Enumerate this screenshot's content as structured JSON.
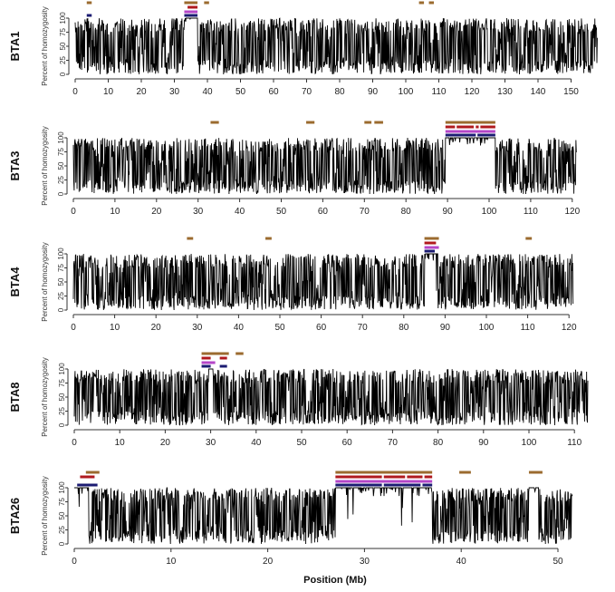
{
  "chart_data": {
    "type": "line",
    "xlabel": "Position (Mb)",
    "ylabel": "Percent of homozygosity",
    "yticks": [
      0,
      25,
      50,
      75,
      100
    ],
    "ylim": [
      0,
      100
    ],
    "grid": false,
    "segment_colors": {
      "brown": "#9b6b2f",
      "red": "#b0191e",
      "magenta": "#b546c8",
      "navy": "#1b1b72"
    },
    "panels": [
      {
        "label": "BTA1",
        "xmax": 158,
        "xticks": [
          0,
          10,
          20,
          30,
          40,
          50,
          60,
          70,
          80,
          90,
          100,
          110,
          120,
          130,
          140,
          150
        ],
        "high_homozygosity_regions": [
          [
            33,
            37
          ]
        ],
        "segments": {
          "brown": [
            [
              3.5,
              5
            ],
            [
              33,
              37
            ],
            [
              39,
              40.5
            ],
            [
              104,
              105.5
            ],
            [
              107,
              108.5
            ]
          ],
          "red": [
            [
              34,
              37
            ]
          ],
          "magenta": [
            [
              33,
              37
            ]
          ],
          "navy": [
            [
              3.5,
              5
            ],
            [
              33,
              37
            ]
          ]
        }
      },
      {
        "label": "BTA3",
        "xmax": 121,
        "xticks": [
          0,
          10,
          20,
          30,
          40,
          50,
          60,
          70,
          80,
          90,
          100,
          110,
          120
        ],
        "high_homozygosity_regions": [
          [
            89.5,
            101.5
          ]
        ],
        "segments": {
          "brown": [
            [
              33,
              35
            ],
            [
              56,
              58
            ],
            [
              70,
              71.7
            ],
            [
              72.4,
              74.5
            ],
            [
              89.5,
              101.5
            ]
          ],
          "red": [
            [
              89.5,
              91.8
            ],
            [
              92.2,
              96.3
            ],
            [
              96.8,
              97.5
            ],
            [
              97.9,
              101.5
            ]
          ],
          "magenta": [
            [
              89.5,
              101.5
            ]
          ],
          "navy": [
            [
              89.5,
              96.8
            ],
            [
              97.2,
              101.5
            ]
          ]
        }
      },
      {
        "label": "BTA4",
        "xmax": 121,
        "xticks": [
          0,
          10,
          20,
          30,
          40,
          50,
          60,
          70,
          80,
          90,
          100,
          110,
          120
        ],
        "high_homozygosity_regions": [
          [
            85,
            88.3
          ]
        ],
        "segments": {
          "brown": [
            [
              27.5,
              29
            ],
            [
              46.5,
              48
            ],
            [
              85,
              88.5
            ],
            [
              109.5,
              111
            ]
          ],
          "red": [
            [
              85,
              87.8
            ]
          ],
          "magenta": [
            [
              85,
              88.5
            ]
          ],
          "navy": [
            [
              85,
              87.5
            ]
          ]
        }
      },
      {
        "label": "BTA8",
        "xmax": 113,
        "xticks": [
          0,
          10,
          20,
          30,
          40,
          50,
          60,
          70,
          80,
          90,
          100,
          110
        ],
        "high_homozygosity_regions": [
          [
            29.5,
            30.5
          ]
        ],
        "segments": {
          "brown": [
            [
              28,
              34
            ],
            [
              35.5,
              37.2
            ]
          ],
          "red": [
            [
              28,
              30
            ],
            [
              32,
              33.6
            ]
          ],
          "magenta": [
            [
              28,
              31
            ]
          ],
          "navy": [
            [
              28,
              30
            ],
            [
              32,
              33.6
            ]
          ]
        }
      },
      {
        "label": "BTA26",
        "xmax": 51.5,
        "xticks": [
          0,
          10,
          20,
          30,
          40,
          50
        ],
        "high_homozygosity_regions": [
          [
            0,
            1.5
          ],
          [
            27,
            37
          ],
          [
            47,
            48
          ]
        ],
        "segments": {
          "brown": [
            [
              1.2,
              2.6
            ],
            [
              27,
              37
            ],
            [
              39.8,
              41
            ],
            [
              47,
              48.4
            ]
          ],
          "red": [
            [
              0.6,
              2.1
            ],
            [
              27,
              31.8
            ],
            [
              32,
              34.2
            ],
            [
              34.4,
              36
            ],
            [
              36.2,
              37
            ]
          ],
          "magenta": [
            [
              27,
              37
            ]
          ],
          "navy": [
            [
              0.3,
              2.4
            ],
            [
              27,
              31.8
            ],
            [
              32,
              35.8
            ],
            [
              36,
              37
            ]
          ]
        }
      }
    ]
  }
}
